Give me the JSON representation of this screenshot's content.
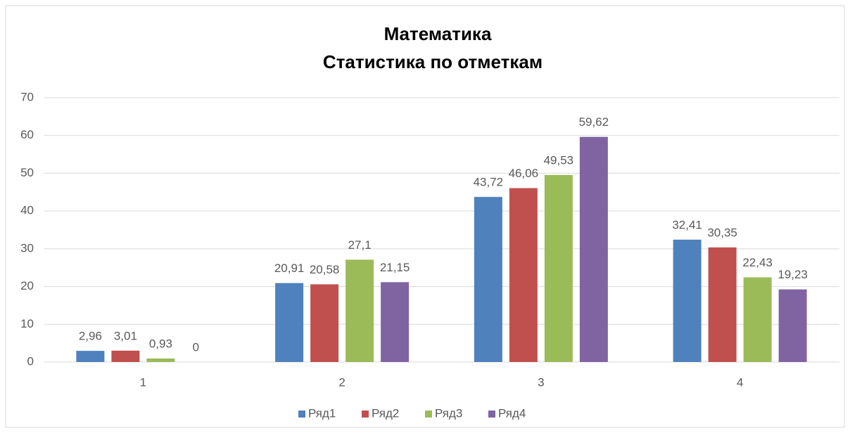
{
  "chart_data": {
    "type": "bar",
    "title": "Математика",
    "subtitle": "Статистика  по отметкам",
    "categories": [
      "1",
      "2",
      "3",
      "4"
    ],
    "series": [
      {
        "name": "Ряд1",
        "color": "#4f81bd",
        "values": [
          2.96,
          20.91,
          43.72,
          32.41
        ],
        "value_labels": [
          "2,96",
          "20,91",
          "43,72",
          "32,41"
        ]
      },
      {
        "name": "Ряд2",
        "color": "#c0504d",
        "values": [
          3.01,
          20.58,
          46.06,
          30.35
        ],
        "value_labels": [
          "3,01",
          "20,58",
          "46,06",
          "30,35"
        ]
      },
      {
        "name": "Ряд3",
        "color": "#9bbb59",
        "values": [
          0.93,
          27.1,
          49.53,
          22.43
        ],
        "value_labels": [
          "0,93",
          "27,1",
          "49,53",
          "22,43"
        ]
      },
      {
        "name": "Ряд4",
        "color": "#8064a2",
        "values": [
          0,
          21.15,
          59.62,
          19.23
        ],
        "value_labels": [
          "0",
          "21,15",
          "59,62",
          "19,23"
        ]
      }
    ],
    "ylim": [
      0,
      70
    ],
    "yticks": [
      0,
      10,
      20,
      30,
      40,
      50,
      60,
      70
    ],
    "grid": true,
    "legend": "bottom"
  }
}
